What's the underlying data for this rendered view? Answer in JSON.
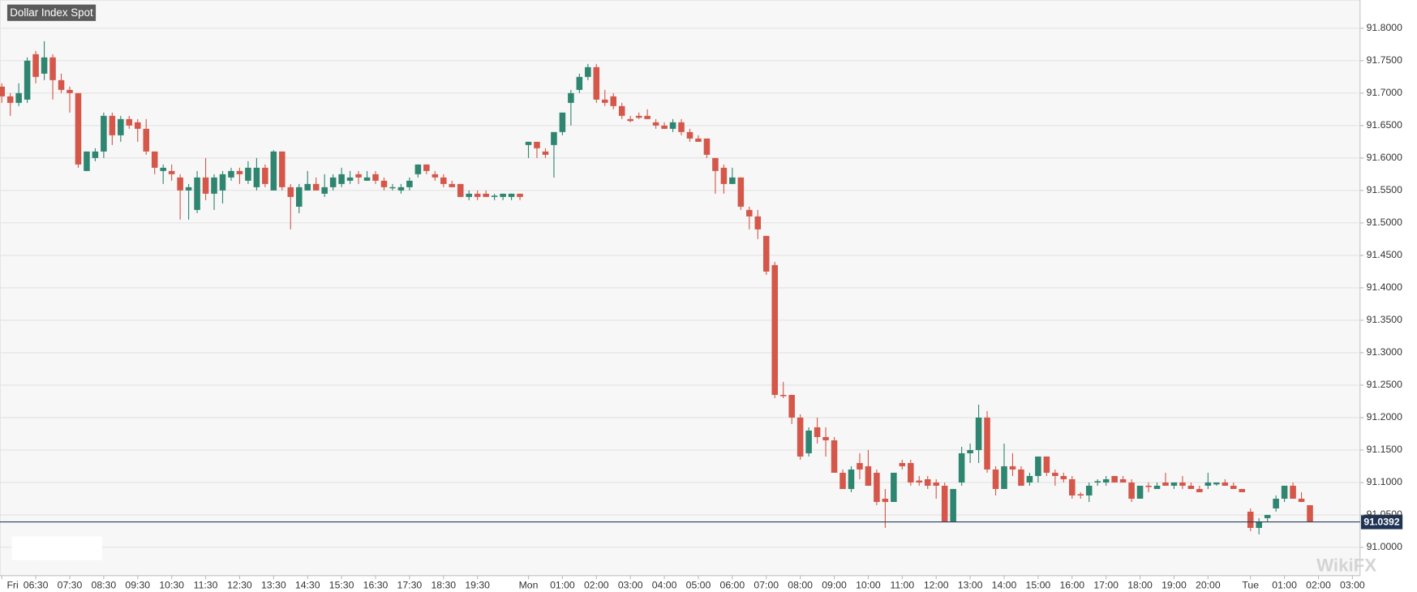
{
  "chart_data": {
    "type": "candlestick",
    "title": "Dollar Index Spot",
    "watermark": "WikiFX",
    "up_color": "#2e8570",
    "down_color": "#d4574a",
    "grid": true,
    "last_price": 91.0392,
    "ylim": [
      90.9565,
      91.8435
    ],
    "yticks": [
      {
        "value": 91.0,
        "label": "91.0000"
      },
      {
        "value": 91.05,
        "label": "91.0500"
      },
      {
        "value": 91.1,
        "label": "91.1000"
      },
      {
        "value": 91.15,
        "label": "91.1500"
      },
      {
        "value": 91.2,
        "label": "91.2000"
      },
      {
        "value": 91.25,
        "label": "91.2500"
      },
      {
        "value": 91.3,
        "label": "91.3000"
      },
      {
        "value": 91.35,
        "label": "91.3500"
      },
      {
        "value": 91.4,
        "label": "91.4000"
      },
      {
        "value": 91.45,
        "label": "91.4500"
      },
      {
        "value": 91.5,
        "label": "91.5000"
      },
      {
        "value": 91.55,
        "label": "91.5500"
      },
      {
        "value": 91.6,
        "label": "91.6000"
      },
      {
        "value": 91.65,
        "label": "91.6500"
      },
      {
        "value": 91.7,
        "label": "91.7000"
      },
      {
        "value": 91.75,
        "label": "91.7500"
      },
      {
        "value": 91.8,
        "label": "91.8000"
      }
    ],
    "xlim": [
      -0.21,
      159.9
    ],
    "xticks": [
      {
        "value": 0,
        "label": "Fri"
      },
      {
        "value": 4,
        "label": "06:30"
      },
      {
        "value": 8,
        "label": "07:30"
      },
      {
        "value": 12,
        "label": "08:30"
      },
      {
        "value": 16,
        "label": "09:30"
      },
      {
        "value": 20,
        "label": "10:30"
      },
      {
        "value": 24,
        "label": "11:30"
      },
      {
        "value": 28,
        "label": "12:30"
      },
      {
        "value": 32,
        "label": "13:30"
      },
      {
        "value": 36,
        "label": "14:30"
      },
      {
        "value": 40,
        "label": "15:30"
      },
      {
        "value": 44,
        "label": "16:30"
      },
      {
        "value": 48,
        "label": "17:30"
      },
      {
        "value": 52,
        "label": "18:30"
      },
      {
        "value": 56,
        "label": "19:30"
      },
      {
        "value": 62,
        "label": "Mon"
      },
      {
        "value": 66,
        "label": "01:00"
      },
      {
        "value": 70,
        "label": "02:00"
      },
      {
        "value": 74,
        "label": "03:00"
      },
      {
        "value": 78,
        "label": "04:00"
      },
      {
        "value": 82,
        "label": "05:00"
      },
      {
        "value": 86,
        "label": "06:00"
      },
      {
        "value": 90,
        "label": "07:00"
      },
      {
        "value": 94,
        "label": "08:00"
      },
      {
        "value": 98,
        "label": "09:00"
      },
      {
        "value": 102,
        "label": "10:00"
      },
      {
        "value": 106,
        "label": "11:00"
      },
      {
        "value": 110,
        "label": "12:00"
      },
      {
        "value": 114,
        "label": "13:00"
      },
      {
        "value": 118,
        "label": "14:00"
      },
      {
        "value": 122,
        "label": "15:00"
      },
      {
        "value": 126,
        "label": "16:00"
      },
      {
        "value": 130,
        "label": "17:00"
      },
      {
        "value": 134,
        "label": "18:00"
      },
      {
        "value": 138,
        "label": "19:00"
      },
      {
        "value": 142,
        "label": "20:00"
      },
      {
        "value": 147,
        "label": "Tue"
      },
      {
        "value": 151,
        "label": "01:00"
      },
      {
        "value": 155,
        "label": "02:00"
      },
      {
        "value": 159,
        "label": "03:00"
      }
    ],
    "ohlc": [
      [
        91.71,
        91.715,
        91.685,
        91.695
      ],
      [
        91.695,
        91.7,
        91.665,
        91.685
      ],
      [
        91.685,
        91.715,
        91.68,
        91.7
      ],
      [
        91.69,
        91.755,
        91.685,
        91.75
      ],
      [
        91.76,
        91.765,
        91.715,
        91.725
      ],
      [
        91.73,
        91.78,
        91.72,
        91.755
      ],
      [
        91.755,
        91.76,
        91.69,
        91.72
      ],
      [
        91.72,
        91.73,
        91.7,
        91.705
      ],
      [
        91.705,
        91.71,
        91.67,
        91.7
      ],
      [
        91.7,
        91.7,
        91.585,
        91.59
      ],
      [
        91.58,
        91.61,
        91.58,
        91.61
      ],
      [
        91.6,
        91.615,
        91.595,
        91.61
      ],
      [
        91.61,
        91.67,
        91.6,
        91.665
      ],
      [
        91.665,
        91.67,
        91.62,
        91.635
      ],
      [
        91.635,
        91.665,
        91.625,
        91.66
      ],
      [
        91.66,
        91.665,
        91.645,
        91.65
      ],
      [
        91.655,
        91.66,
        91.625,
        91.645
      ],
      [
        91.645,
        91.66,
        91.605,
        91.61
      ],
      [
        91.61,
        91.61,
        91.575,
        91.585
      ],
      [
        91.58,
        91.59,
        91.56,
        91.585
      ],
      [
        91.58,
        91.59,
        91.565,
        91.575
      ],
      [
        91.57,
        91.575,
        91.505,
        91.55
      ],
      [
        91.55,
        91.56,
        91.505,
        91.555
      ],
      [
        91.52,
        91.58,
        91.515,
        91.57
      ],
      [
        91.57,
        91.6,
        91.535,
        91.545
      ],
      [
        91.545,
        91.575,
        91.52,
        91.57
      ],
      [
        91.55,
        91.58,
        91.53,
        91.575
      ],
      [
        91.57,
        91.585,
        91.565,
        91.58
      ],
      [
        91.58,
        91.585,
        91.56,
        91.575
      ],
      [
        91.565,
        91.595,
        91.56,
        91.585
      ],
      [
        91.555,
        91.6,
        91.55,
        91.585
      ],
      [
        91.585,
        91.59,
        91.555,
        91.56
      ],
      [
        91.55,
        91.612,
        91.55,
        91.61
      ],
      [
        91.61,
        91.61,
        91.55,
        91.555
      ],
      [
        91.555,
        91.56,
        91.49,
        91.54
      ],
      [
        91.525,
        91.56,
        91.515,
        91.555
      ],
      [
        91.55,
        91.58,
        91.55,
        91.56
      ],
      [
        91.56,
        91.57,
        91.55,
        91.55
      ],
      [
        91.545,
        91.575,
        91.54,
        91.555
      ],
      [
        91.555,
        91.575,
        91.55,
        91.57
      ],
      [
        91.56,
        91.585,
        91.555,
        91.575
      ],
      [
        91.565,
        91.58,
        91.56,
        91.57
      ],
      [
        91.575,
        91.58,
        91.56,
        91.57
      ],
      [
        91.565,
        91.58,
        91.565,
        91.57
      ],
      [
        91.575,
        91.58,
        91.56,
        91.565
      ],
      [
        91.565,
        91.57,
        91.55,
        91.555
      ],
      [
        91.555,
        91.56,
        91.55,
        91.555
      ],
      [
        91.55,
        91.56,
        91.545,
        91.555
      ],
      [
        91.555,
        91.57,
        91.55,
        91.565
      ],
      [
        91.575,
        91.59,
        91.57,
        91.59
      ],
      [
        91.59,
        91.59,
        91.575,
        91.58
      ],
      [
        91.575,
        91.58,
        91.565,
        91.57
      ],
      [
        91.57,
        91.575,
        91.555,
        91.56
      ],
      [
        91.56,
        91.565,
        91.555,
        91.555
      ],
      [
        91.56,
        91.56,
        91.54,
        91.54
      ],
      [
        91.54,
        91.55,
        91.535,
        91.545
      ],
      [
        91.545,
        91.55,
        91.535,
        91.54
      ],
      [
        91.545,
        91.55,
        91.54,
        91.54
      ],
      [
        91.54,
        91.545,
        91.535,
        91.542
      ],
      [
        91.54,
        91.545,
        91.535,
        91.545
      ],
      [
        91.54,
        91.545,
        91.535,
        91.545
      ],
      [
        91.545,
        91.545,
        91.535,
        91.54
      ],
      [
        91.62,
        91.625,
        91.6,
        91.625
      ],
      [
        91.625,
        91.625,
        91.6,
        91.615
      ],
      [
        91.61,
        91.615,
        91.6,
        91.605
      ],
      [
        91.62,
        91.64,
        91.57,
        91.64
      ],
      [
        91.64,
        91.67,
        91.635,
        91.67
      ],
      [
        91.685,
        91.705,
        91.65,
        91.7
      ],
      [
        91.705,
        91.73,
        91.7,
        91.725
      ],
      [
        91.725,
        91.745,
        91.72,
        91.74
      ],
      [
        91.74,
        91.745,
        91.685,
        91.69
      ],
      [
        91.69,
        91.705,
        91.68,
        91.685
      ],
      [
        91.695,
        91.7,
        91.675,
        91.68
      ],
      [
        91.68,
        91.685,
        91.66,
        91.665
      ],
      [
        91.66,
        91.665,
        91.655,
        91.657
      ],
      [
        91.665,
        91.67,
        91.66,
        91.662
      ],
      [
        91.665,
        91.675,
        91.66,
        91.66
      ],
      [
        91.655,
        91.66,
        91.645,
        91.65
      ],
      [
        91.65,
        91.655,
        91.645,
        91.645
      ],
      [
        91.645,
        91.66,
        91.64,
        91.655
      ],
      [
        91.655,
        91.66,
        91.635,
        91.64
      ],
      [
        91.64,
        91.645,
        91.625,
        91.63
      ],
      [
        91.63,
        91.635,
        91.625,
        91.625
      ],
      [
        91.63,
        91.63,
        91.6,
        91.605
      ],
      [
        91.6,
        91.6,
        91.545,
        91.58
      ],
      [
        91.585,
        91.59,
        91.545,
        91.56
      ],
      [
        91.56,
        91.585,
        91.56,
        91.57
      ],
      [
        91.57,
        91.57,
        91.52,
        91.525
      ],
      [
        91.52,
        91.525,
        91.49,
        91.51
      ],
      [
        91.51,
        91.52,
        91.475,
        91.49
      ],
      [
        91.48,
        91.48,
        91.42,
        91.425
      ],
      [
        91.435,
        91.44,
        91.23,
        91.235
      ],
      [
        91.235,
        91.255,
        91.23,
        91.233
      ],
      [
        91.235,
        91.235,
        91.19,
        91.2
      ],
      [
        91.2,
        91.205,
        91.135,
        91.14
      ],
      [
        91.145,
        91.185,
        91.14,
        91.18
      ],
      [
        91.185,
        91.2,
        91.16,
        91.17
      ],
      [
        91.17,
        91.185,
        91.14,
        91.165
      ],
      [
        91.165,
        91.17,
        91.115,
        91.115
      ],
      [
        91.115,
        91.12,
        91.09,
        91.09
      ],
      [
        91.09,
        91.125,
        91.085,
        91.12
      ],
      [
        91.13,
        91.145,
        91.105,
        91.12
      ],
      [
        91.125,
        91.15,
        91.095,
        91.095
      ],
      [
        91.115,
        91.12,
        91.065,
        91.07
      ],
      [
        91.075,
        91.09,
        91.03,
        91.07
      ],
      [
        91.07,
        91.115,
        91.07,
        91.115
      ],
      [
        91.13,
        91.135,
        91.12,
        91.125
      ],
      [
        91.13,
        91.135,
        91.095,
        91.1
      ],
      [
        91.103,
        91.11,
        91.095,
        91.1
      ],
      [
        91.105,
        91.11,
        91.09,
        91.095
      ],
      [
        91.1,
        91.105,
        91.075,
        91.095
      ],
      [
        91.095,
        91.1,
        91.04,
        91.04
      ],
      [
        91.04,
        91.09,
        91.04,
        91.09
      ],
      [
        91.1,
        91.155,
        91.095,
        91.145
      ],
      [
        91.145,
        91.16,
        91.13,
        91.15
      ],
      [
        91.15,
        91.22,
        91.13,
        91.2
      ],
      [
        91.2,
        91.21,
        91.115,
        91.12
      ],
      [
        91.12,
        91.125,
        91.08,
        91.09
      ],
      [
        91.09,
        91.16,
        91.09,
        91.125
      ],
      [
        91.125,
        91.145,
        91.11,
        91.12
      ],
      [
        91.12,
        91.125,
        91.095,
        91.095
      ],
      [
        91.1,
        91.115,
        91.095,
        91.11
      ],
      [
        91.11,
        91.14,
        91.1,
        91.14
      ],
      [
        91.14,
        91.14,
        91.11,
        91.115
      ],
      [
        91.115,
        91.12,
        91.095,
        91.11
      ],
      [
        91.11,
        91.115,
        91.1,
        91.105
      ],
      [
        91.105,
        91.11,
        91.075,
        91.08
      ],
      [
        91.082,
        91.085,
        91.075,
        91.08
      ],
      [
        91.08,
        91.1,
        91.07,
        91.095
      ],
      [
        91.1,
        91.105,
        91.095,
        91.102
      ],
      [
        91.1,
        91.11,
        91.095,
        91.105
      ],
      [
        91.11,
        91.11,
        91.1,
        91.1
      ],
      [
        91.105,
        91.11,
        91.1,
        91.1
      ],
      [
        91.1,
        91.105,
        91.07,
        91.075
      ],
      [
        91.075,
        91.095,
        91.075,
        91.095
      ],
      [
        91.095,
        91.1,
        91.085,
        91.093
      ],
      [
        91.09,
        91.1,
        91.09,
        91.095
      ],
      [
        91.1,
        91.115,
        91.095,
        91.095
      ],
      [
        91.095,
        91.1,
        91.09,
        91.1
      ],
      [
        91.1,
        91.11,
        91.09,
        91.095
      ],
      [
        91.095,
        91.1,
        91.09,
        91.09
      ],
      [
        91.09,
        91.095,
        91.085,
        91.085
      ],
      [
        91.095,
        91.115,
        91.09,
        91.1
      ],
      [
        91.097,
        91.1,
        91.095,
        91.1
      ],
      [
        91.1,
        91.105,
        91.095,
        91.095
      ],
      [
        91.095,
        91.1,
        91.09,
        91.09
      ],
      [
        91.09,
        91.09,
        91.085,
        91.085
      ],
      [
        91.055,
        91.06,
        91.025,
        91.03
      ],
      [
        91.03,
        91.045,
        91.02,
        91.04
      ],
      [
        91.045,
        91.05,
        91.04,
        91.05
      ],
      [
        91.06,
        91.08,
        91.055,
        91.075
      ],
      [
        91.075,
        91.095,
        91.07,
        91.095
      ],
      [
        91.095,
        91.1,
        91.075,
        91.075
      ],
      [
        91.075,
        91.085,
        91.07,
        91.07
      ],
      [
        91.065,
        91.065,
        91.04,
        91.04
      ]
    ]
  }
}
